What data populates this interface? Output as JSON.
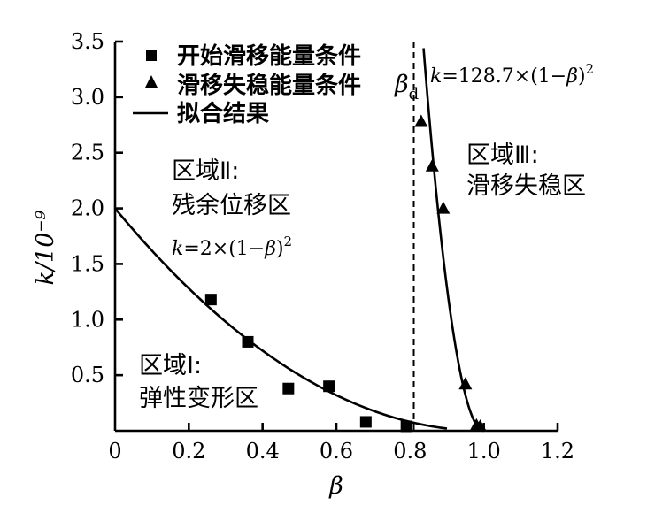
{
  "chart_data": {
    "type": "scatter",
    "xlabel": "β",
    "ylabel": "k/10⁻⁹",
    "xlim": [
      0,
      1.2
    ],
    "ylim": [
      0,
      3.5
    ],
    "x_ticks": [
      "0",
      "0.2",
      "0.4",
      "0.6",
      "0.8",
      "1.0",
      "1.2"
    ],
    "y_ticks": [
      "0.5",
      "1.0",
      "1.5",
      "2.0",
      "2.5",
      "3.0",
      "3.5"
    ],
    "legend": {
      "position": "top-left",
      "entries": [
        "开始滑移能量条件",
        "滑移失稳能量条件",
        "拟合结果"
      ]
    },
    "series": [
      {
        "name": "开始滑移能量条件",
        "marker": "square",
        "x": [
          0.26,
          0.36,
          0.47,
          0.58,
          0.68,
          0.79
        ],
        "y": [
          1.18,
          0.8,
          0.38,
          0.4,
          0.08,
          0.04
        ]
      },
      {
        "name": "滑移失稳能量条件",
        "marker": "triangle",
        "x": [
          0.83,
          0.86,
          0.89,
          0.95,
          0.98,
          0.99
        ],
        "y": [
          2.78,
          2.38,
          2.0,
          0.42,
          0.05,
          0.04
        ]
      }
    ],
    "fits": [
      {
        "coef": 2,
        "x_range": [
          0,
          0.9
        ],
        "label": {
          "k": "k",
          "rest": "=2×(1−",
          "beta": "β",
          "tail": ")",
          "sup": "2"
        }
      },
      {
        "coef": 128.7,
        "x_range": [
          0.82,
          1.0
        ],
        "label": {
          "k": "k",
          "rest": "=128.7×(1−",
          "beta": "β",
          "tail": ")",
          "sup": "2"
        }
      }
    ],
    "threshold": {
      "x": 0.81,
      "label_main": "β",
      "label_sub": "d"
    },
    "annotations": {
      "region1": [
        "区域Ⅰ:",
        "弹性变形区"
      ],
      "region2": [
        "区域Ⅱ:",
        "残余位移区"
      ],
      "region3": [
        "区域Ⅲ:",
        "滑移失稳区"
      ]
    }
  }
}
